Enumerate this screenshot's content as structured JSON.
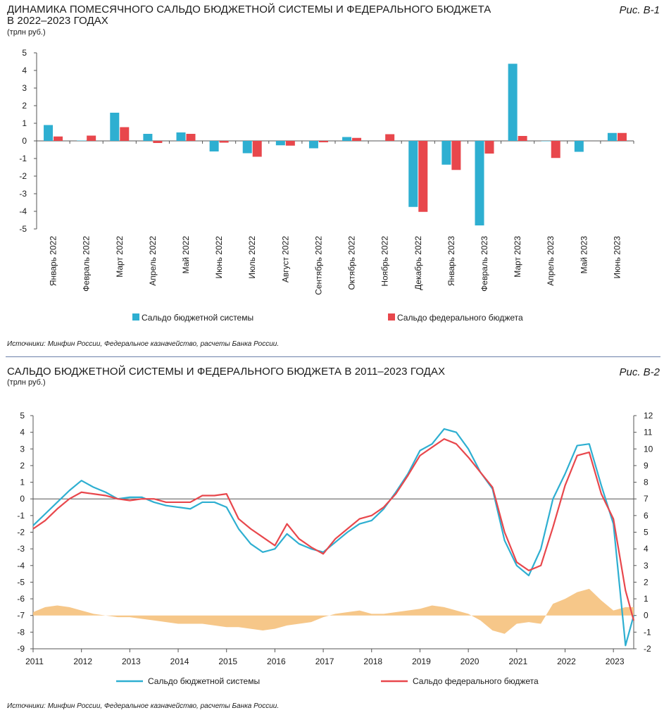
{
  "colors": {
    "budget_system": "#2eafd1",
    "federal_budget": "#e8474c",
    "diff_area": "#f5c483",
    "grid": "#d9d9d9",
    "axis": "#555555"
  },
  "fig1": {
    "title_line1": "ДИНАМИКА ПОМЕСЯЧНОГО САЛЬДО БЮДЖЕТНОЙ СИСТЕМЫ И ФЕДЕРАЛЬНОГО БЮДЖЕТА",
    "title_line2": "В 2022–2023 ГОДАХ",
    "unit": "(трлн руб.)",
    "label": "Рис. В-1",
    "source": "Источники: Минфин России, Федеральное казначейство, расчеты Банка России."
  },
  "fig2": {
    "title": "САЛЬДО БЮДЖЕТНОЙ СИСТЕМЫ И ФЕДЕРАЛЬНОГО БЮДЖЕТА В 2011–2023 ГОДАХ",
    "unit": "(трлн руб.)",
    "label": "Рис. В-2",
    "source": "Источники: Минфин России, Федеральное казначейство, расчеты Банка России."
  },
  "chart_data": [
    {
      "type": "bar",
      "categories": [
        "Январь 2022",
        "Февраль 2022",
        "Март 2022",
        "Апрель 2022",
        "Май 2022",
        "Июнь 2022",
        "Июль 2022",
        "Август 2022",
        "Сентябрь 2022",
        "Октябрь 2022",
        "Ноябрь 2022",
        "Декабрь 2022",
        "Январь 2023",
        "Февраль 2023",
        "Март 2023",
        "Апрель 2023",
        "Май 2023",
        "Июнь 2023"
      ],
      "series": [
        {
          "name": "Сальдо бюджетной системы",
          "values": [
            0.9,
            0.02,
            1.6,
            0.4,
            0.48,
            -0.6,
            -0.7,
            -0.25,
            -0.42,
            0.22,
            0.0,
            -3.75,
            -1.35,
            -4.8,
            4.38,
            -0.02,
            -0.62,
            0.45
          ]
        },
        {
          "name": "Сальдо федерального бюджета",
          "values": [
            0.25,
            0.3,
            0.78,
            -0.12,
            0.4,
            -0.1,
            -0.9,
            -0.27,
            -0.08,
            0.17,
            0.38,
            -4.03,
            -1.65,
            -0.72,
            0.28,
            -0.97,
            0.0,
            0.45
          ]
        }
      ],
      "ylim": [
        -5,
        5
      ],
      "yticks": [
        5,
        4,
        3,
        2,
        1,
        0,
        -1,
        -2,
        -3,
        -4,
        -5
      ],
      "legend": "bottom",
      "grid": false
    },
    {
      "type": "line",
      "x_ticks": [
        "2011",
        "2012",
        "2013",
        "2014",
        "2015",
        "2016",
        "2017",
        "2018",
        "2019",
        "2020",
        "2021",
        "2022",
        "2023"
      ],
      "ylim_left": [
        -9,
        5
      ],
      "ylim_right": [
        -2,
        12
      ],
      "yticks_left": [
        5,
        4,
        3,
        2,
        1,
        0,
        -1,
        -2,
        -3,
        -4,
        -5,
        -6,
        -7,
        -8,
        -9
      ],
      "yticks_right": [
        12,
        11,
        10,
        9,
        8,
        7,
        6,
        5,
        4,
        3,
        2,
        1,
        0,
        -1,
        -2
      ],
      "x": [
        2011.0,
        2011.25,
        2011.5,
        2011.75,
        2012.0,
        2012.25,
        2012.5,
        2012.75,
        2013.0,
        2013.25,
        2013.5,
        2013.75,
        2014.0,
        2014.25,
        2014.5,
        2014.75,
        2015.0,
        2015.25,
        2015.5,
        2015.75,
        2016.0,
        2016.25,
        2016.5,
        2016.75,
        2017.0,
        2017.25,
        2017.5,
        2017.75,
        2018.0,
        2018.25,
        2018.5,
        2018.75,
        2019.0,
        2019.25,
        2019.5,
        2019.75,
        2020.0,
        2020.25,
        2020.5,
        2020.75,
        2021.0,
        2021.25,
        2021.5,
        2021.75,
        2022.0,
        2022.25,
        2022.5,
        2022.75,
        2023.0,
        2023.25,
        2023.42
      ],
      "series": [
        {
          "name": "Сальдо бюджетной системы",
          "axis": "left",
          "values": [
            -1.6,
            -0.9,
            -0.2,
            0.5,
            1.1,
            0.7,
            0.4,
            0.0,
            0.1,
            0.1,
            -0.2,
            -0.4,
            -0.5,
            -0.6,
            -0.2,
            -0.2,
            -0.5,
            -1.8,
            -2.7,
            -3.2,
            -3.0,
            -2.1,
            -2.7,
            -3.0,
            -3.2,
            -2.6,
            -2.0,
            -1.5,
            -1.3,
            -0.6,
            0.4,
            1.5,
            2.9,
            3.3,
            4.2,
            4.0,
            3.0,
            1.6,
            0.6,
            -2.5,
            -4.0,
            -4.6,
            -3.0,
            0.0,
            1.5,
            3.2,
            3.3,
            0.8,
            -1.5,
            -8.8,
            -7.0
          ]
        },
        {
          "name": "Сальдо федерального бюджета",
          "axis": "left",
          "values": [
            -1.8,
            -1.3,
            -0.6,
            0.0,
            0.4,
            0.3,
            0.2,
            0.0,
            -0.1,
            0.0,
            0.0,
            -0.2,
            -0.2,
            -0.2,
            0.2,
            0.2,
            0.3,
            -1.2,
            -1.8,
            -2.3,
            -2.8,
            -1.5,
            -2.4,
            -2.9,
            -3.3,
            -2.4,
            -1.8,
            -1.2,
            -1.0,
            -0.5,
            0.3,
            1.4,
            2.6,
            3.1,
            3.6,
            3.3,
            2.5,
            1.6,
            0.7,
            -2.0,
            -3.8,
            -4.3,
            -4.0,
            -1.7,
            0.8,
            2.6,
            2.8,
            0.3,
            -1.2,
            -5.5,
            -7.3
          ]
        },
        {
          "name": "",
          "axis": "right",
          "values": [
            0.2,
            0.5,
            0.6,
            0.5,
            0.3,
            0.1,
            0.0,
            -0.1,
            -0.1,
            -0.2,
            -0.3,
            -0.4,
            -0.5,
            -0.5,
            -0.5,
            -0.6,
            -0.7,
            -0.7,
            -0.8,
            -0.9,
            -0.8,
            -0.6,
            -0.5,
            -0.4,
            -0.1,
            0.1,
            0.2,
            0.3,
            0.1,
            0.1,
            0.2,
            0.3,
            0.4,
            0.6,
            0.5,
            0.3,
            0.1,
            -0.3,
            -0.9,
            -1.1,
            -0.5,
            -0.4,
            -0.5,
            0.7,
            1.0,
            1.4,
            1.6,
            0.9,
            0.3,
            0.5,
            0.5
          ]
        }
      ],
      "legend": "bottom",
      "grid": false
    }
  ]
}
